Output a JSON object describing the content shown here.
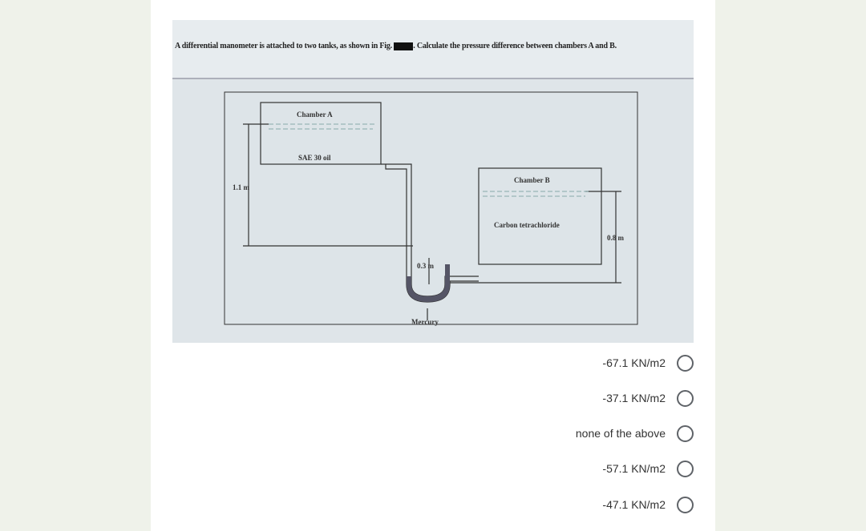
{
  "question": {
    "text_before": "A differential manometer is attached to two tanks, as shown in Fig.",
    "text_after": ". Calculate the pressure difference between chambers A and B."
  },
  "figure": {
    "chamber_a": "Chamber A",
    "oil": "SAE 30 oil",
    "height_left": "1.1 m",
    "chamber_b": "Chamber B",
    "liquid_b": "Carbon tetrachloride",
    "height_right": "0.8 m",
    "height_mercury": "0.3 m",
    "mercury": "Mercury"
  },
  "options": [
    "-67.1 KN/m2",
    "-37.1 KN/m2",
    "none of the above",
    "-57.1 KN/m2",
    "-47.1 KN/m2"
  ]
}
